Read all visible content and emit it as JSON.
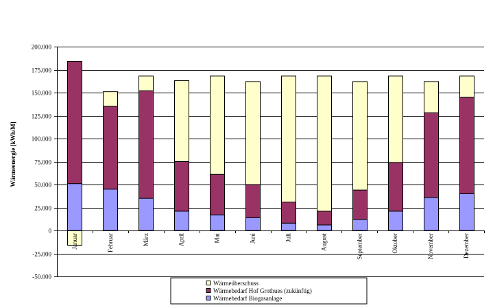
{
  "chart_data": {
    "type": "bar",
    "stacked": true,
    "title": "",
    "xlabel": "",
    "ylabel": "Wärmeenergie [kWh/M]",
    "ylim": [
      -50000,
      200000
    ],
    "yticks": [
      -50000,
      -25000,
      0,
      25000,
      50000,
      75000,
      100000,
      125000,
      150000,
      175000,
      200000
    ],
    "ytick_labels": [
      "-50.000",
      "-25.000",
      "0",
      "25.000",
      "50.000",
      "75.000",
      "100.000",
      "125.000",
      "150.000",
      "175.000",
      "200.000"
    ],
    "grid": true,
    "legend_position": "bottom",
    "categories": [
      "Januar",
      "Februar",
      "März",
      "April",
      "Mai",
      "Juni",
      "Juli",
      "August",
      "September",
      "Oktober",
      "November",
      "Dezember"
    ],
    "series": [
      {
        "name": "Wärmebedarf Biogasanlage",
        "color": "#9999ff",
        "values": [
          51000,
          45000,
          35000,
          21000,
          17000,
          14000,
          8000,
          6000,
          12000,
          21000,
          36000,
          40000
        ]
      },
      {
        "name": "Wärmebedarf Hof Grothues (zukünftig)",
        "color": "#993366",
        "values": [
          133000,
          90000,
          117000,
          54000,
          44000,
          36000,
          23000,
          15000,
          32000,
          53000,
          92000,
          105000
        ]
      },
      {
        "name": "Wärmeüberschuss",
        "color": "#ffffcc",
        "values": [
          -16000,
          16000,
          16000,
          88000,
          107000,
          112000,
          137000,
          147000,
          118000,
          94000,
          34000,
          23000
        ]
      }
    ],
    "legend_order": [
      "Wärmeüberschuss",
      "Wärmebedarf Hof Grothues (zukünftig)",
      "Wärmebedarf Biogasanlage"
    ]
  }
}
